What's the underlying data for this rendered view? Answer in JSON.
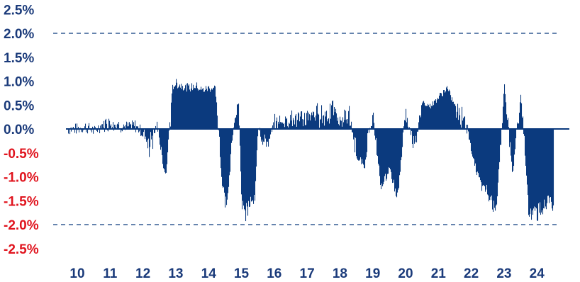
{
  "chart_data": {
    "type": "bar",
    "title": "",
    "xlabel": "",
    "ylabel": "",
    "ylim": [
      -2.5,
      2.5
    ],
    "xlim": [
      2010,
      2025
    ],
    "grid": false,
    "y_ticks": [
      {
        "value": 2.5,
        "label": "2.5%"
      },
      {
        "value": 2.0,
        "label": "2.0%"
      },
      {
        "value": 1.5,
        "label": "1.5%"
      },
      {
        "value": 1.0,
        "label": "1.0%"
      },
      {
        "value": 0.5,
        "label": "0.5%"
      },
      {
        "value": 0.0,
        "label": "0.0%"
      },
      {
        "value": -0.5,
        "label": "-0.5%"
      },
      {
        "value": -1.0,
        "label": "-1.0%"
      },
      {
        "value": -1.5,
        "label": "-1.5%"
      },
      {
        "value": -2.0,
        "label": "-2.0%"
      },
      {
        "value": -2.5,
        "label": "-2.5%"
      }
    ],
    "x_ticks": [
      {
        "value": 2010,
        "label": "10"
      },
      {
        "value": 2011,
        "label": "11"
      },
      {
        "value": 2012,
        "label": "12"
      },
      {
        "value": 2013,
        "label": "13"
      },
      {
        "value": 2014,
        "label": "14"
      },
      {
        "value": 2015,
        "label": "15"
      },
      {
        "value": 2016,
        "label": "16"
      },
      {
        "value": 2017,
        "label": "17"
      },
      {
        "value": 2018,
        "label": "18"
      },
      {
        "value": 2019,
        "label": "19"
      },
      {
        "value": 2020,
        "label": "20"
      },
      {
        "value": 2021,
        "label": "21"
      },
      {
        "value": 2022,
        "label": "22"
      },
      {
        "value": 2023,
        "label": "23"
      },
      {
        "value": 2024,
        "label": "24"
      }
    ],
    "reference_lines": [
      2.0,
      -2.0
    ],
    "colors": {
      "bars": "#0b3a7e",
      "positive_labels": "#1a3a7a",
      "negative_labels": "#e0141e",
      "zero_line": "#0b3a7e"
    },
    "series": [
      {
        "x": [
          2010.0,
          2010.25,
          2010.5,
          2010.75,
          2011.0,
          2011.25,
          2011.5,
          2011.75,
          2012.0,
          2012.15,
          2012.3,
          2012.4,
          2012.5,
          2012.6,
          2012.7,
          2012.8,
          2012.9,
          2013.0,
          2013.2,
          2013.4,
          2013.6,
          2013.8,
          2014.0,
          2014.2,
          2014.4,
          2014.5,
          2014.6,
          2014.7,
          2014.8,
          2014.9,
          2015.0,
          2015.1,
          2015.2,
          2015.3,
          2015.4,
          2015.5,
          2015.6,
          2015.75,
          2016.0,
          2016.25,
          2016.5,
          2016.75,
          2017.0,
          2017.25,
          2017.5,
          2017.75,
          2018.0,
          2018.25,
          2018.5,
          2018.75,
          2019.0,
          2019.25,
          2019.5,
          2019.75,
          2020.0,
          2020.25,
          2020.5,
          2020.75,
          2021.0,
          2021.25,
          2021.5,
          2021.75,
          2022.0,
          2022.25,
          2022.5,
          2022.75,
          2023.0,
          2023.25,
          2023.5,
          2023.75,
          2024.0,
          2024.2,
          2024.4,
          2024.5
        ],
        "values": [
          0.0,
          0.05,
          -0.05,
          0.1,
          0.2,
          0.1,
          0.05,
          0.08,
          -0.1,
          -0.5,
          -0.3,
          0.1,
          -0.2,
          -0.8,
          -1.0,
          0.1,
          0.95,
          1.0,
          0.95,
          0.9,
          0.95,
          0.85,
          0.9,
          0.9,
          -1.2,
          -1.6,
          -1.4,
          -0.2,
          0.4,
          0.6,
          -1.6,
          -1.9,
          -1.7,
          -1.5,
          -1.6,
          0.1,
          -0.2,
          -0.4,
          0.15,
          0.2,
          0.3,
          0.25,
          0.3,
          0.4,
          0.35,
          0.5,
          0.2,
          0.4,
          -0.6,
          -0.8,
          0.3,
          -1.3,
          -0.9,
          -1.5,
          0.4,
          -0.5,
          0.6,
          0.5,
          0.7,
          0.9,
          0.5,
          0.4,
          -0.5,
          -1.2,
          -1.4,
          -1.9,
          1.0,
          -1.0,
          0.8,
          -1.9,
          -1.85,
          -1.7,
          -1.6,
          -1.9
        ]
      }
    ]
  }
}
